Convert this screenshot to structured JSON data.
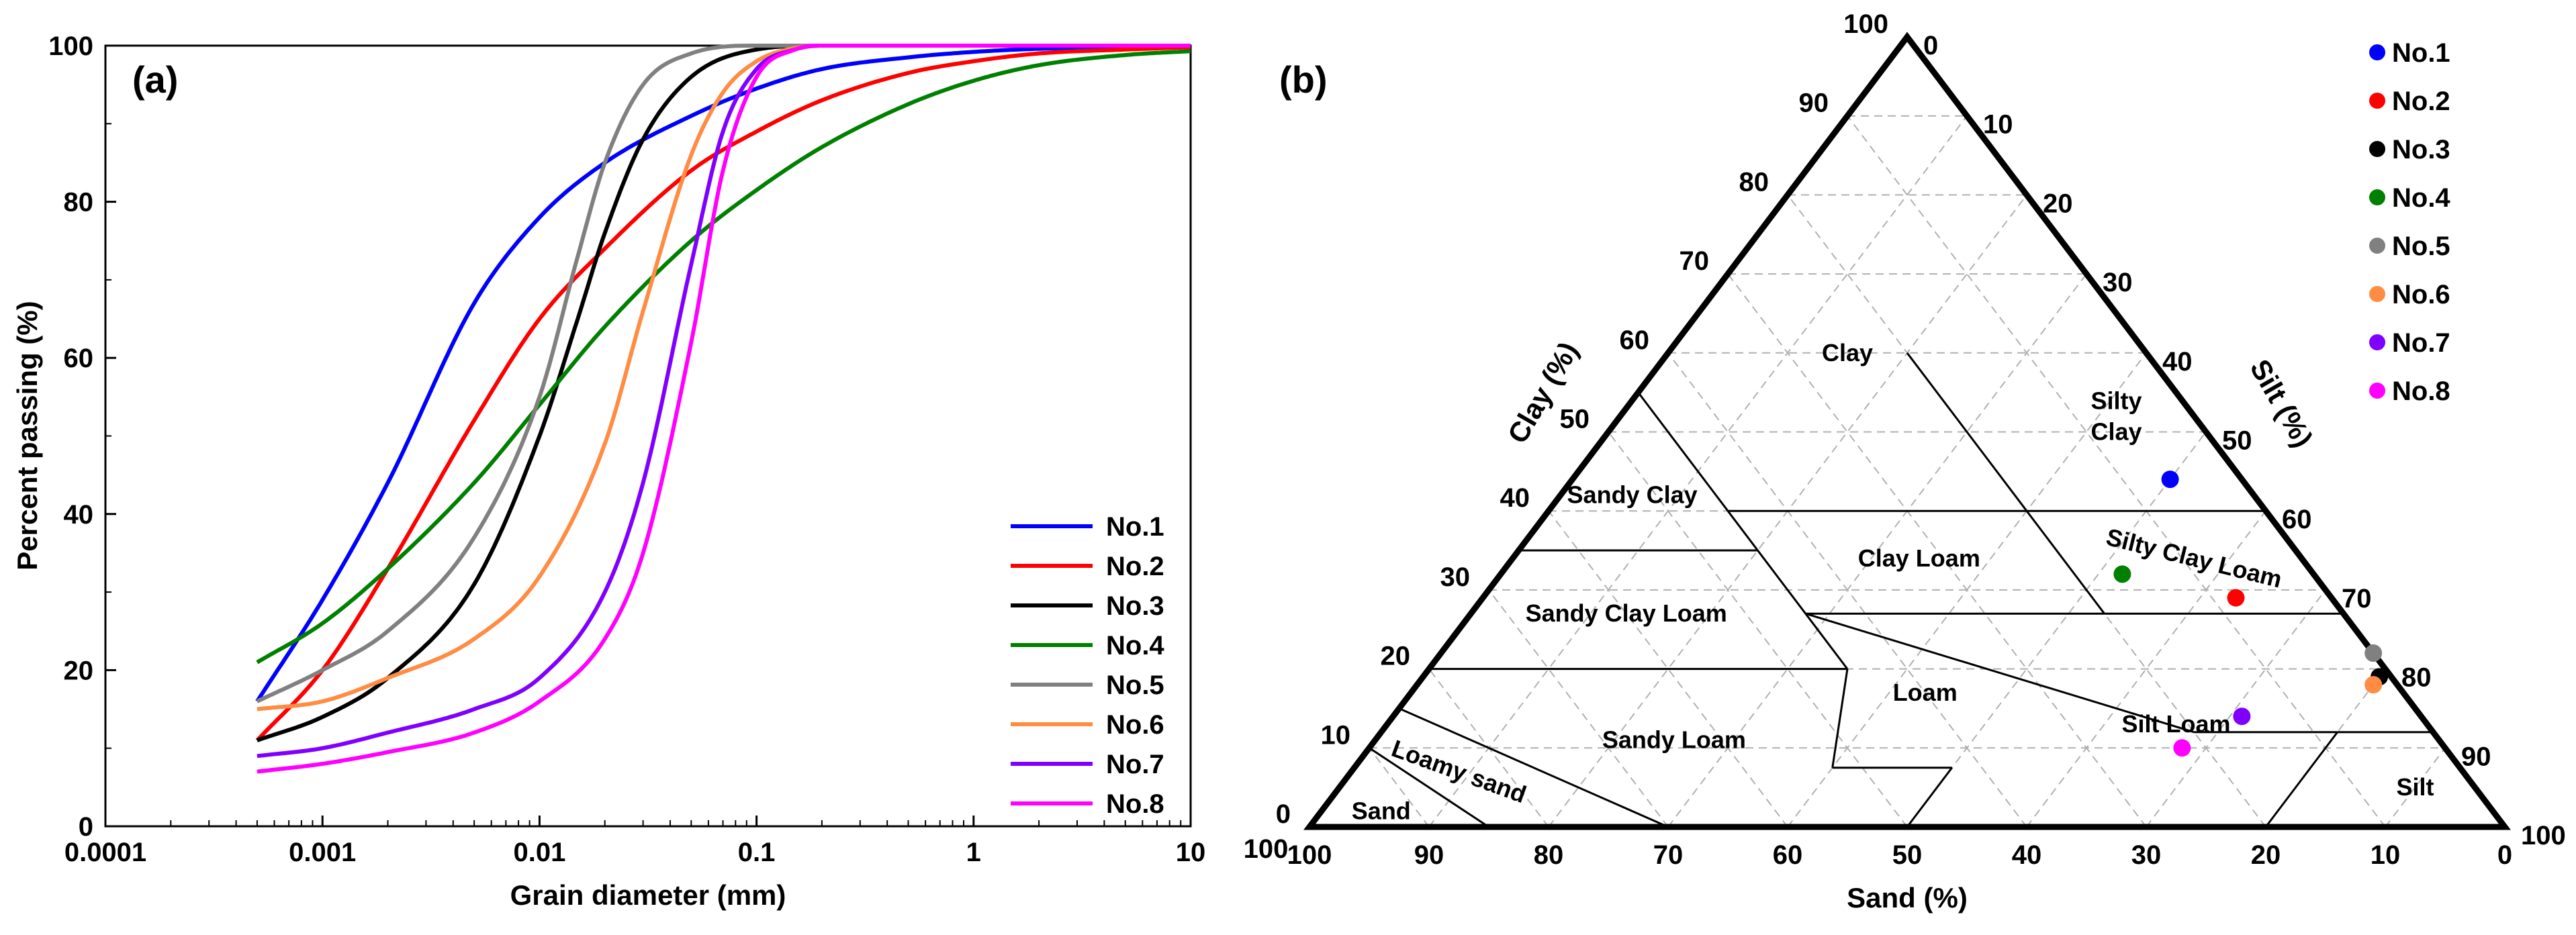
{
  "chart_data": [
    {
      "panel": "(a)",
      "type": "line",
      "xscale": "log",
      "xlabel": "Grain diameter (mm)",
      "ylabel": "Percent passing (%)",
      "xlim": [
        0.0001,
        10
      ],
      "ylim": [
        0,
        100
      ],
      "x_ticks": [
        "0.0001",
        "0.001",
        "0.01",
        "0.1",
        "1",
        "10"
      ],
      "y_ticks": [
        "0",
        "20",
        "40",
        "60",
        "80",
        "100"
      ],
      "legend_position": "bottom-right",
      "series": [
        {
          "name": "No.1",
          "color": "#0000ff",
          "x": [
            0.0005,
            0.001,
            0.002,
            0.005,
            0.01,
            0.02,
            0.05,
            0.1,
            0.2,
            0.5,
            1,
            2,
            5,
            10
          ],
          "y": [
            16,
            29,
            44,
            67,
            78,
            85,
            91,
            94.5,
            97,
            98.5,
            99.2,
            99.6,
            99.8,
            99.9
          ]
        },
        {
          "name": "No.2",
          "color": "#ff0000",
          "x": [
            0.0005,
            0.001,
            0.002,
            0.005,
            0.01,
            0.02,
            0.05,
            0.1,
            0.2,
            0.5,
            1,
            2,
            5,
            10
          ],
          "y": [
            11,
            20,
            33,
            52,
            65,
            74,
            84,
            89,
            93,
            96.5,
            98,
            99,
            99.5,
            99.8
          ]
        },
        {
          "name": "No.3",
          "color": "#000000",
          "x": [
            0.0005,
            0.001,
            0.002,
            0.005,
            0.01,
            0.015,
            0.02,
            0.03,
            0.05,
            0.1,
            0.2,
            0.5,
            1,
            10
          ],
          "y": [
            11,
            14,
            19,
            31,
            50,
            65,
            76,
            88,
            96,
            99.5,
            100,
            100,
            100,
            100
          ]
        },
        {
          "name": "No.4",
          "color": "#008000",
          "x": [
            0.0005,
            0.001,
            0.002,
            0.005,
            0.01,
            0.02,
            0.05,
            0.1,
            0.2,
            0.5,
            1,
            2,
            5,
            10
          ],
          "y": [
            21,
            26,
            33,
            44,
            54,
            64,
            75,
            81.5,
            87,
            92.5,
            95.5,
            97.5,
            98.8,
            99.3
          ]
        },
        {
          "name": "No.5",
          "color": "#808080",
          "x": [
            0.0005,
            0.001,
            0.002,
            0.005,
            0.01,
            0.015,
            0.02,
            0.03,
            0.05,
            0.1,
            0.2,
            0.5,
            1,
            10
          ],
          "y": [
            16,
            20,
            25,
            37,
            55,
            73,
            85,
            95,
            99,
            100,
            100,
            100,
            100,
            100
          ]
        },
        {
          "name": "No.6",
          "color": "#ff8c42",
          "x": [
            0.0005,
            0.001,
            0.002,
            0.005,
            0.01,
            0.02,
            0.03,
            0.05,
            0.07,
            0.1,
            0.15,
            0.2,
            0.5,
            10
          ],
          "y": [
            15,
            16,
            19,
            24,
            32,
            49,
            66,
            86,
            94,
            98,
            99.7,
            100,
            100,
            100
          ]
        },
        {
          "name": "No.7",
          "color": "#8000ff",
          "x": [
            0.0005,
            0.001,
            0.002,
            0.005,
            0.01,
            0.02,
            0.03,
            0.05,
            0.07,
            0.1,
            0.15,
            0.2,
            0.5,
            10
          ],
          "y": [
            9,
            10,
            12,
            15,
            19,
            30,
            44,
            72,
            89,
            97,
            99.5,
            100,
            100,
            100
          ]
        },
        {
          "name": "No.8",
          "color": "#ff00ff",
          "x": [
            0.0005,
            0.001,
            0.002,
            0.005,
            0.01,
            0.02,
            0.03,
            0.05,
            0.07,
            0.1,
            0.15,
            0.2,
            0.5,
            10
          ],
          "y": [
            7,
            8,
            9.5,
            12,
            16,
            24,
            35,
            62,
            84,
            96,
            99.5,
            100,
            100,
            100
          ]
        }
      ]
    },
    {
      "panel": "(b)",
      "type": "ternary",
      "clay_label": "Clay (%)",
      "silt_label": "Silt (%)",
      "sand_label": "Sand (%)",
      "clay_ticks": [
        "0",
        "10",
        "20",
        "30",
        "40",
        "50",
        "60",
        "70",
        "80",
        "90",
        "100"
      ],
      "silt_ticks": [
        "0",
        "10",
        "20",
        "30",
        "40",
        "50",
        "60",
        "70",
        "80",
        "90",
        "100"
      ],
      "sand_ticks": [
        "100",
        "90",
        "80",
        "70",
        "60",
        "50",
        "40",
        "30",
        "20",
        "10",
        "0"
      ],
      "legend_position": "top-right",
      "regions": [
        "Clay",
        "Silty Clay",
        "Sandy Clay",
        "Clay Loam",
        "Silty Clay Loam",
        "Sandy Clay Loam",
        "Loam",
        "Silt Loam",
        "Sandy Loam",
        "Loamy sand",
        "Sand",
        "Silt"
      ],
      "points": [
        {
          "name": "No.1",
          "color": "#0000ff",
          "sand": 6,
          "silt": 50,
          "clay": 44
        },
        {
          "name": "No.2",
          "color": "#ff0000",
          "sand": 8,
          "silt": 63,
          "clay": 29
        },
        {
          "name": "No.3",
          "color": "#000000",
          "sand": 1,
          "silt": 80,
          "clay": 19
        },
        {
          "name": "No.4",
          "color": "#008000",
          "sand": 16,
          "silt": 52,
          "clay": 32
        },
        {
          "name": "No.5",
          "color": "#808080",
          "sand": 0,
          "silt": 78,
          "clay": 22
        },
        {
          "name": "No.6",
          "color": "#ff8c42",
          "sand": 2,
          "silt": 80,
          "clay": 18
        },
        {
          "name": "No.7",
          "color": "#8000ff",
          "sand": 15,
          "silt": 71,
          "clay": 14
        },
        {
          "name": "No.8",
          "color": "#ff00ff",
          "sand": 22,
          "silt": 68,
          "clay": 10
        }
      ]
    }
  ]
}
